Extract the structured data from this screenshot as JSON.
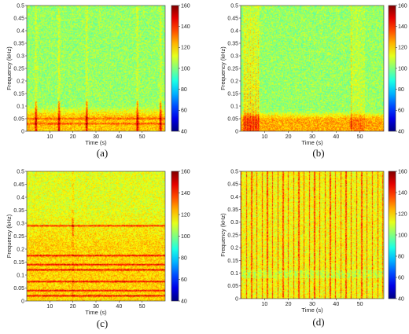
{
  "chart_data": [
    {
      "type": "heatmap",
      "caption": "(a)",
      "xlabel": "Time (s)",
      "ylabel": "Frequency (kHz)",
      "xlim": [
        0,
        60
      ],
      "ylim": [
        0,
        0.5
      ],
      "xticks": [
        10,
        20,
        30,
        40,
        50
      ],
      "yticks": [
        0,
        0.05,
        0.1,
        0.15,
        0.2,
        0.25,
        0.3,
        0.35,
        0.4,
        0.45,
        0.5
      ],
      "colorbar": {
        "min": 40,
        "max": 160,
        "ticks": [
          40,
          60,
          80,
          100,
          120,
          140,
          160
        ]
      },
      "background_level": 103,
      "low_frequency_band": {
        "freq_range": [
          0,
          0.1
        ],
        "level": 122
      },
      "harmonic_lines_khz": [
        0.03,
        0.05
      ],
      "transient_events_s": [
        4,
        14,
        26,
        48,
        58
      ]
    },
    {
      "type": "heatmap",
      "caption": "(b)",
      "xlabel": "Time (s)",
      "ylabel": "Frequency (kHz)",
      "xlim": [
        0,
        60
      ],
      "ylim": [
        0,
        0.5
      ],
      "xticks": [
        10,
        20,
        30,
        40,
        50
      ],
      "yticks": [
        0,
        0.05,
        0.1,
        0.15,
        0.2,
        0.25,
        0.3,
        0.35,
        0.4,
        0.45,
        0.5
      ],
      "colorbar": {
        "min": 40,
        "max": 160,
        "ticks": [
          40,
          60,
          80,
          100,
          120,
          140,
          160
        ]
      },
      "background_level": 103,
      "low_frequency_band": {
        "freq_range": [
          0,
          0.08
        ],
        "level": 125
      },
      "broadband_bursts_s": [
        [
          1,
          8
        ],
        [
          46,
          52
        ]
      ],
      "peak_level": 150
    },
    {
      "type": "heatmap",
      "caption": "(c)",
      "xlabel": "Time (s)",
      "ylabel": "Frequency (kHz)",
      "xlim": [
        0,
        60
      ],
      "ylim": [
        0,
        0.5
      ],
      "xticks": [
        10,
        20,
        30,
        40,
        50
      ],
      "yticks": [
        0,
        0.05,
        0.1,
        0.15,
        0.2,
        0.25,
        0.3,
        0.35,
        0.4,
        0.45,
        0.5
      ],
      "colorbar": {
        "min": 40,
        "max": 160,
        "ticks": [
          40,
          60,
          80,
          100,
          120,
          140,
          160
        ]
      },
      "background_level": 112,
      "low_frequency_band": {
        "freq_range": [
          0,
          0.35
        ],
        "level": 120
      },
      "tonal_lines_khz": [
        0.02,
        0.04,
        0.075,
        0.12,
        0.14,
        0.175,
        0.29
      ],
      "transient_events_s": [
        20
      ]
    },
    {
      "type": "heatmap",
      "caption": "(d)",
      "xlabel": "Time (s)",
      "ylabel": "Frequency (kHz)",
      "xlim": [
        0,
        60
      ],
      "ylim": [
        0,
        0.5
      ],
      "xticks": [
        10,
        20,
        30,
        40,
        50
      ],
      "yticks": [
        0,
        0.05,
        0.1,
        0.15,
        0.2,
        0.25,
        0.3,
        0.35,
        0.4,
        0.45,
        0.5
      ],
      "colorbar": {
        "min": 40,
        "max": 160,
        "ticks": [
          40,
          60,
          80,
          100,
          120,
          140,
          160
        ]
      },
      "background_level": 114,
      "impulse_train_spacing_s": 2.2,
      "peak_level": 138
    }
  ]
}
